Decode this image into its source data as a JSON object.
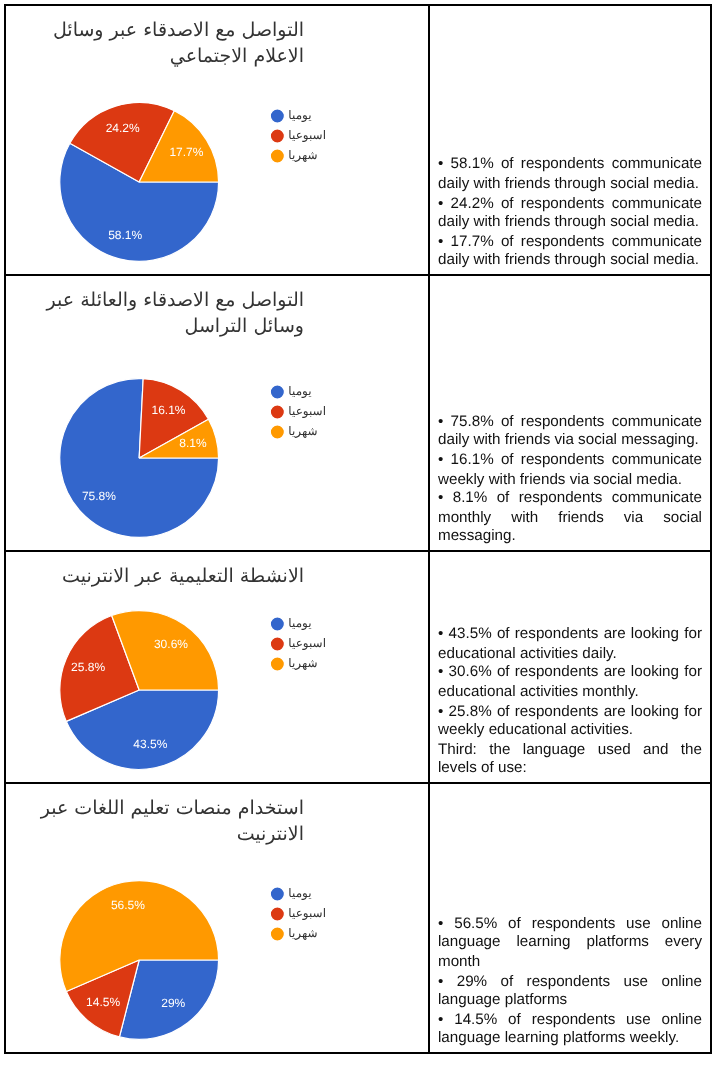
{
  "chart_data": [
    {
      "type": "pie",
      "title": "التواصل مع الاصدقاء عبر وسائل الاعلام الاجتماعي",
      "categories": [
        "يوميا",
        "اسبوعيا",
        "شهريا"
      ],
      "values": [
        58.1,
        24.2,
        17.7
      ],
      "value_labels": [
        "58.1%",
        "24.2%",
        "17.7%"
      ],
      "colors": [
        "#3366cc",
        "#dc3912",
        "#ff9900"
      ],
      "legend": "right",
      "annotations": [
        "• 58.1% of respondents communicate daily with friends through social media.",
        "• 24.2% of respondents communicate daily with friends through social media.",
        "• 17.7% of respondents communicate daily with friends through social media."
      ]
    },
    {
      "type": "pie",
      "title": "التواصل مع الاصدقاء والعائلة عبر وسائل التراسل",
      "categories": [
        "يوميا",
        "اسبوعيا",
        "شهريا"
      ],
      "values": [
        75.8,
        16.1,
        8.1
      ],
      "value_labels": [
        "75.8%",
        "16.1%",
        "8.1%"
      ],
      "colors": [
        "#3366cc",
        "#dc3912",
        "#ff9900"
      ],
      "legend": "right",
      "annotations": [
        "• 75.8% of respondents communicate daily with friends via social messaging.",
        "• 16.1% of respondents communicate weekly with friends via social media.",
        "• 8.1% of respondents communicate monthly with friends via social messaging."
      ]
    },
    {
      "type": "pie",
      "title": "الانشطة التعليمية عبر الانترنيت",
      "categories": [
        "يوميا",
        "اسبوعيا",
        "شهريا"
      ],
      "values": [
        43.5,
        25.8,
        30.6
      ],
      "value_labels": [
        "43.5%",
        "25.8%",
        "30.6%"
      ],
      "colors": [
        "#3366cc",
        "#dc3912",
        "#ff9900"
      ],
      "legend": "right",
      "annotations": [
        "• 43.5% of respondents are looking for educational activities daily.",
        "• 30.6% of respondents are looking for educational activities monthly.",
        "• 25.8% of respondents are looking for weekly educational activities.",
        "Third: the language used and the levels of use:"
      ]
    },
    {
      "type": "pie",
      "title": "استخدام منصات تعليم اللغات عبر الانترنيت",
      "categories": [
        "يوميا",
        "اسبوعيا",
        "شهريا"
      ],
      "values": [
        29,
        14.5,
        56.5
      ],
      "value_labels": [
        "29%",
        "14.5%",
        "56.5%"
      ],
      "colors": [
        "#3366cc",
        "#dc3912",
        "#ff9900"
      ],
      "legend": "right",
      "annotations": [
        "• 56.5% of respondents use online language learning platforms every month",
        "• 29% of respondents use online language platforms",
        "• 14.5% of respondents use online language learning platforms weekly."
      ]
    }
  ]
}
